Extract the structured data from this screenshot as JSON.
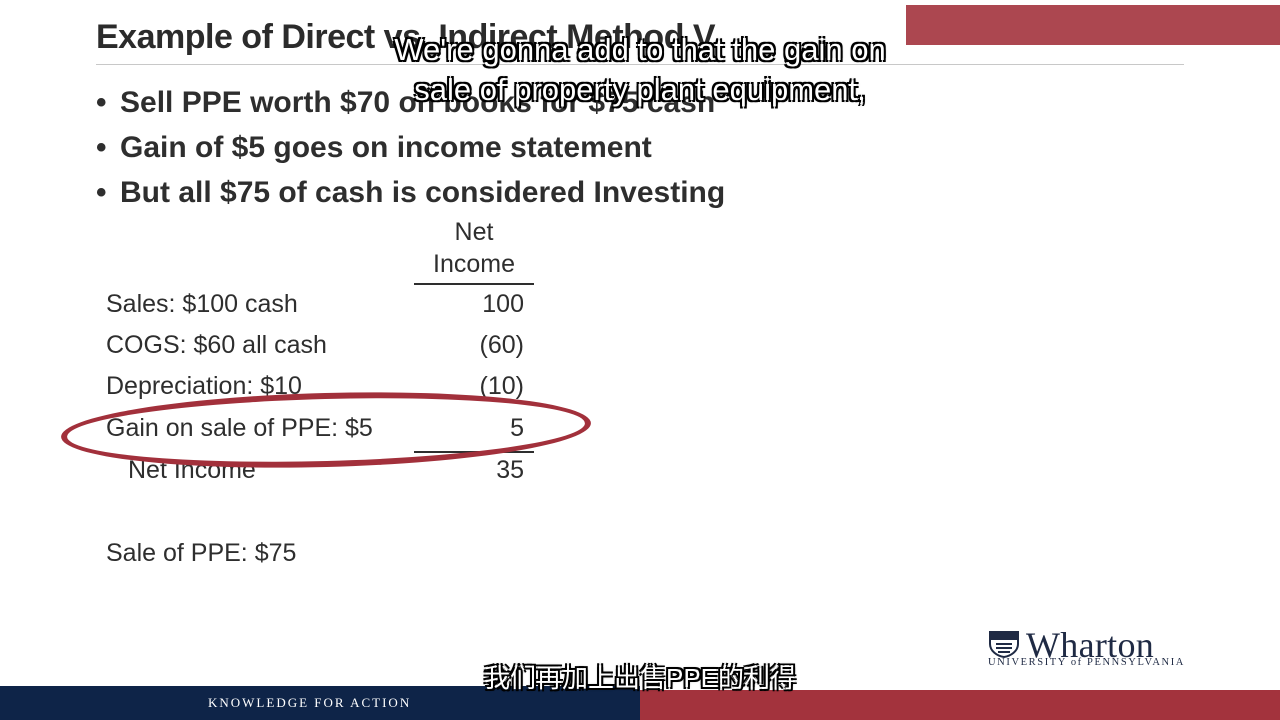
{
  "slide": {
    "title": "Example of Direct vs. Indirect Method V",
    "bullets": [
      "Sell PPE worth $70 on books for $75 cash",
      "Gain of $5 goes on income statement",
      "But all $75 of cash is considered Investing"
    ],
    "table": {
      "column_header": [
        "Net",
        "Income"
      ],
      "rows": [
        {
          "label": "Sales: $100 cash",
          "value": "100"
        },
        {
          "label": "COGS: $60 all cash",
          "value": "(60)"
        },
        {
          "label": "Depreciation: $10",
          "value": "(10)"
        },
        {
          "label": "Gain on sale of PPE: $5",
          "value": "5"
        },
        {
          "label": "Net Income",
          "value": "35"
        }
      ]
    },
    "note": "Sale of PPE: $75"
  },
  "subtitles": {
    "english": [
      "We're gonna add to that the gain on",
      "sale of property plant equipment,"
    ],
    "chinese": "我们再加上出售PPE的利得"
  },
  "branding": {
    "logo_word": "Wharton",
    "logo_sub": "UNIVERSITY of PENNSYLVANIA",
    "footer_tagline": "KNOWLEDGE FOR ACTION"
  },
  "colors": {
    "navy": "#0e2448",
    "crimson": "#a3333d",
    "highlight_ellipse": "#a2303b"
  }
}
